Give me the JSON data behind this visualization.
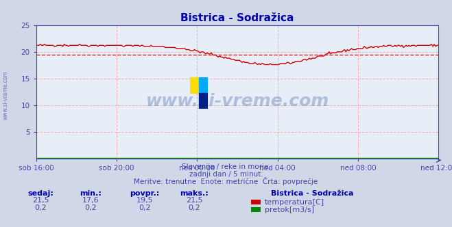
{
  "title": "Bistrica - Sodražica",
  "bg_color": "#d0d8e8",
  "plot_bg_color": "#e8eef8",
  "grid_color_major": "#c8c8d8",
  "title_color": "#0000aa",
  "axis_color": "#4444aa",
  "text_color": "#4444aa",
  "ylim": [
    0,
    25
  ],
  "yticks": [
    5,
    10,
    15,
    20,
    25
  ],
  "xlabel_ticks": [
    "sob 16:00",
    "sob 20:00",
    "ned 00:00",
    "ned 04:00",
    "ned 08:00",
    "ned 12:00"
  ],
  "avg_line_value": 19.5,
  "avg_line_color": "#cc0000",
  "temp_line_color": "#cc0000",
  "flow_line_color": "#008800",
  "watermark_text": "www.si-vreme.com",
  "watermark_color": "#4466aa",
  "watermark_alpha": 0.35,
  "subtitle_line1": "Slovenija / reke in morje.",
  "subtitle_line2": "zadnji dan / 5 minut.",
  "subtitle_line3": "Meritve: trenutne  Enote: metrične  Črta: povprečje",
  "legend_title": "Bistrica - Sodražica",
  "legend_items": [
    "temperatura[C]",
    "pretok[m3/s]"
  ],
  "legend_colors": [
    "#cc0000",
    "#008800"
  ],
  "table_headers": [
    "sedaj:",
    "min.:",
    "povpr.:",
    "maks.:"
  ],
  "table_row1": [
    "21,5",
    "17,6",
    "19,5",
    "21,5"
  ],
  "table_row2": [
    "0,2",
    "0,2",
    "0,2",
    "0,2"
  ],
  "n_points": 288,
  "flow_value": 0.2
}
